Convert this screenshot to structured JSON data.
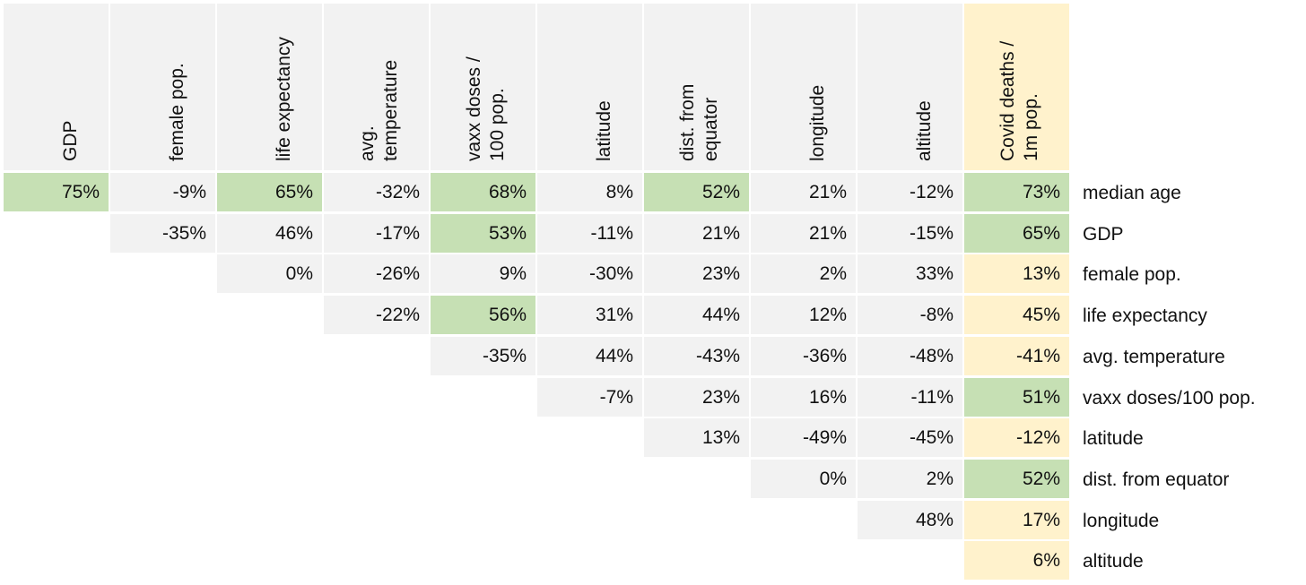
{
  "chart_data": {
    "type": "table",
    "columns": [
      {
        "label": [
          "GDP"
        ]
      },
      {
        "label": [
          "female pop."
        ]
      },
      {
        "label": [
          "life expectancy"
        ]
      },
      {
        "label": [
          "avg.",
          "temperature"
        ]
      },
      {
        "label": [
          "vaxx doses /",
          "100 pop."
        ]
      },
      {
        "label": [
          "latitude"
        ]
      },
      {
        "label": [
          "dist. from",
          "equator"
        ]
      },
      {
        "label": [
          "longitude"
        ]
      },
      {
        "label": [
          "altitude"
        ]
      },
      {
        "label": [
          "Covid deaths /",
          "1m pop."
        ]
      }
    ],
    "rows": [
      {
        "label": "median age",
        "start_col": 0,
        "values": [
          "75%",
          "-9%",
          "65%",
          "-32%",
          "68%",
          "8%",
          "52%",
          "21%",
          "-12%",
          "73%"
        ]
      },
      {
        "label": "GDP",
        "start_col": 1,
        "values": [
          "-35%",
          "46%",
          "-17%",
          "53%",
          "-11%",
          "21%",
          "21%",
          "-15%",
          "65%"
        ]
      },
      {
        "label": "female pop.",
        "start_col": 2,
        "values": [
          "0%",
          "-26%",
          "9%",
          "-30%",
          "23%",
          "2%",
          "33%",
          "13%"
        ]
      },
      {
        "label": "life expectancy",
        "start_col": 3,
        "values": [
          "-22%",
          "56%",
          "31%",
          "44%",
          "12%",
          "-8%",
          "45%"
        ]
      },
      {
        "label": "avg. temperature",
        "start_col": 4,
        "values": [
          "-35%",
          "44%",
          "-43%",
          "-36%",
          "-48%",
          "-41%"
        ]
      },
      {
        "label": "vaxx doses/100 pop.",
        "start_col": 5,
        "values": [
          "-7%",
          "23%",
          "16%",
          "-11%",
          "51%"
        ]
      },
      {
        "label": "latitude",
        "start_col": 6,
        "values": [
          "13%",
          "-49%",
          "-45%",
          "-12%"
        ]
      },
      {
        "label": "dist. from equator",
        "start_col": 7,
        "values": [
          "0%",
          "2%",
          "52%"
        ]
      },
      {
        "label": "longitude",
        "start_col": 8,
        "values": [
          "48%",
          "17%"
        ]
      },
      {
        "label": "altitude",
        "start_col": 9,
        "values": [
          "6%"
        ]
      }
    ],
    "highlight_threshold_percent": 50,
    "colors": {
      "default_cell": "#f2f2f2",
      "highlight_cell": "#c6e0b4",
      "target_column": "#fff2cc"
    }
  }
}
